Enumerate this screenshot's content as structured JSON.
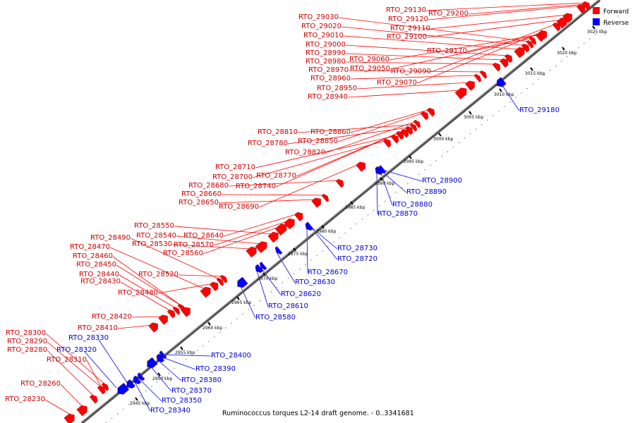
{
  "caption": "Ruminococcus torques L2-14 draft genome. - 0..3341681",
  "legend": {
    "forward_label": "Forward",
    "reverse_label": "Reverse",
    "forward_color": "#ff0000",
    "reverse_color": "#0000ff"
  },
  "ticks": [
    "2945 kbp",
    "2950 kbp",
    "2955 kbp",
    "2960 kbp",
    "2965 kbp",
    "2970 kbp",
    "2975 kbp",
    "2980 kbp",
    "2985 kbp",
    "2990 kbp",
    "2995 kbp",
    "3000 kbp",
    "3005 kbp",
    "3010 kbp",
    "3015 kbp",
    "3020 kbp",
    "3025 kbp"
  ],
  "forward_genes": [
    "RTO_28230",
    "RTO_28260",
    "RTO_28280",
    "RTO_28290",
    "RTO_28300",
    "RTO_28310",
    "RTO_28410",
    "RTO_28420",
    "RTO_28430",
    "RTO_28440",
    "RTO_28450",
    "RTO_28460",
    "RTO_28470",
    "RTO_28480",
    "RTO_28490",
    "RTO_28520",
    "RTO_28530",
    "RTO_28540",
    "RTO_28550",
    "RTO_28560",
    "RTO_28570",
    "RTO_28640",
    "RTO_28650",
    "RTO_28660",
    "RTO_28680",
    "RTO_28690",
    "RTO_28700",
    "RTO_28710",
    "RTO_28740",
    "RTO_28770",
    "RTO_28780",
    "RTO_28810",
    "RTO_28820",
    "RTO_28850",
    "RTO_28860",
    "RTO_28940",
    "RTO_28950",
    "RTO_28960",
    "RTO_28970",
    "RTO_28980",
    "RTO_28990",
    "RTO_29000",
    "RTO_29010",
    "RTO_29020",
    "RTO_29030",
    "RTO_29050",
    "RTO_29060",
    "RTO_29070",
    "RTO_29090",
    "RTO_29100",
    "RTO_29110",
    "RTO_29120",
    "RTO_29130",
    "RTO_29170",
    "RTO_29200"
  ],
  "reverse_genes": [
    "RTO_28320",
    "RTO_28330",
    "RTO_28340",
    "RTO_28350",
    "RTO_28370",
    "RTO_28380",
    "RTO_28390",
    "RTO_28400",
    "RTO_28580",
    "RTO_28610",
    "RTO_28620",
    "RTO_28630",
    "RTO_28670",
    "RTO_28720",
    "RTO_28730",
    "RTO_28870",
    "RTO_28880",
    "RTO_28890",
    "RTO_28900",
    "RTO_29180"
  ]
}
